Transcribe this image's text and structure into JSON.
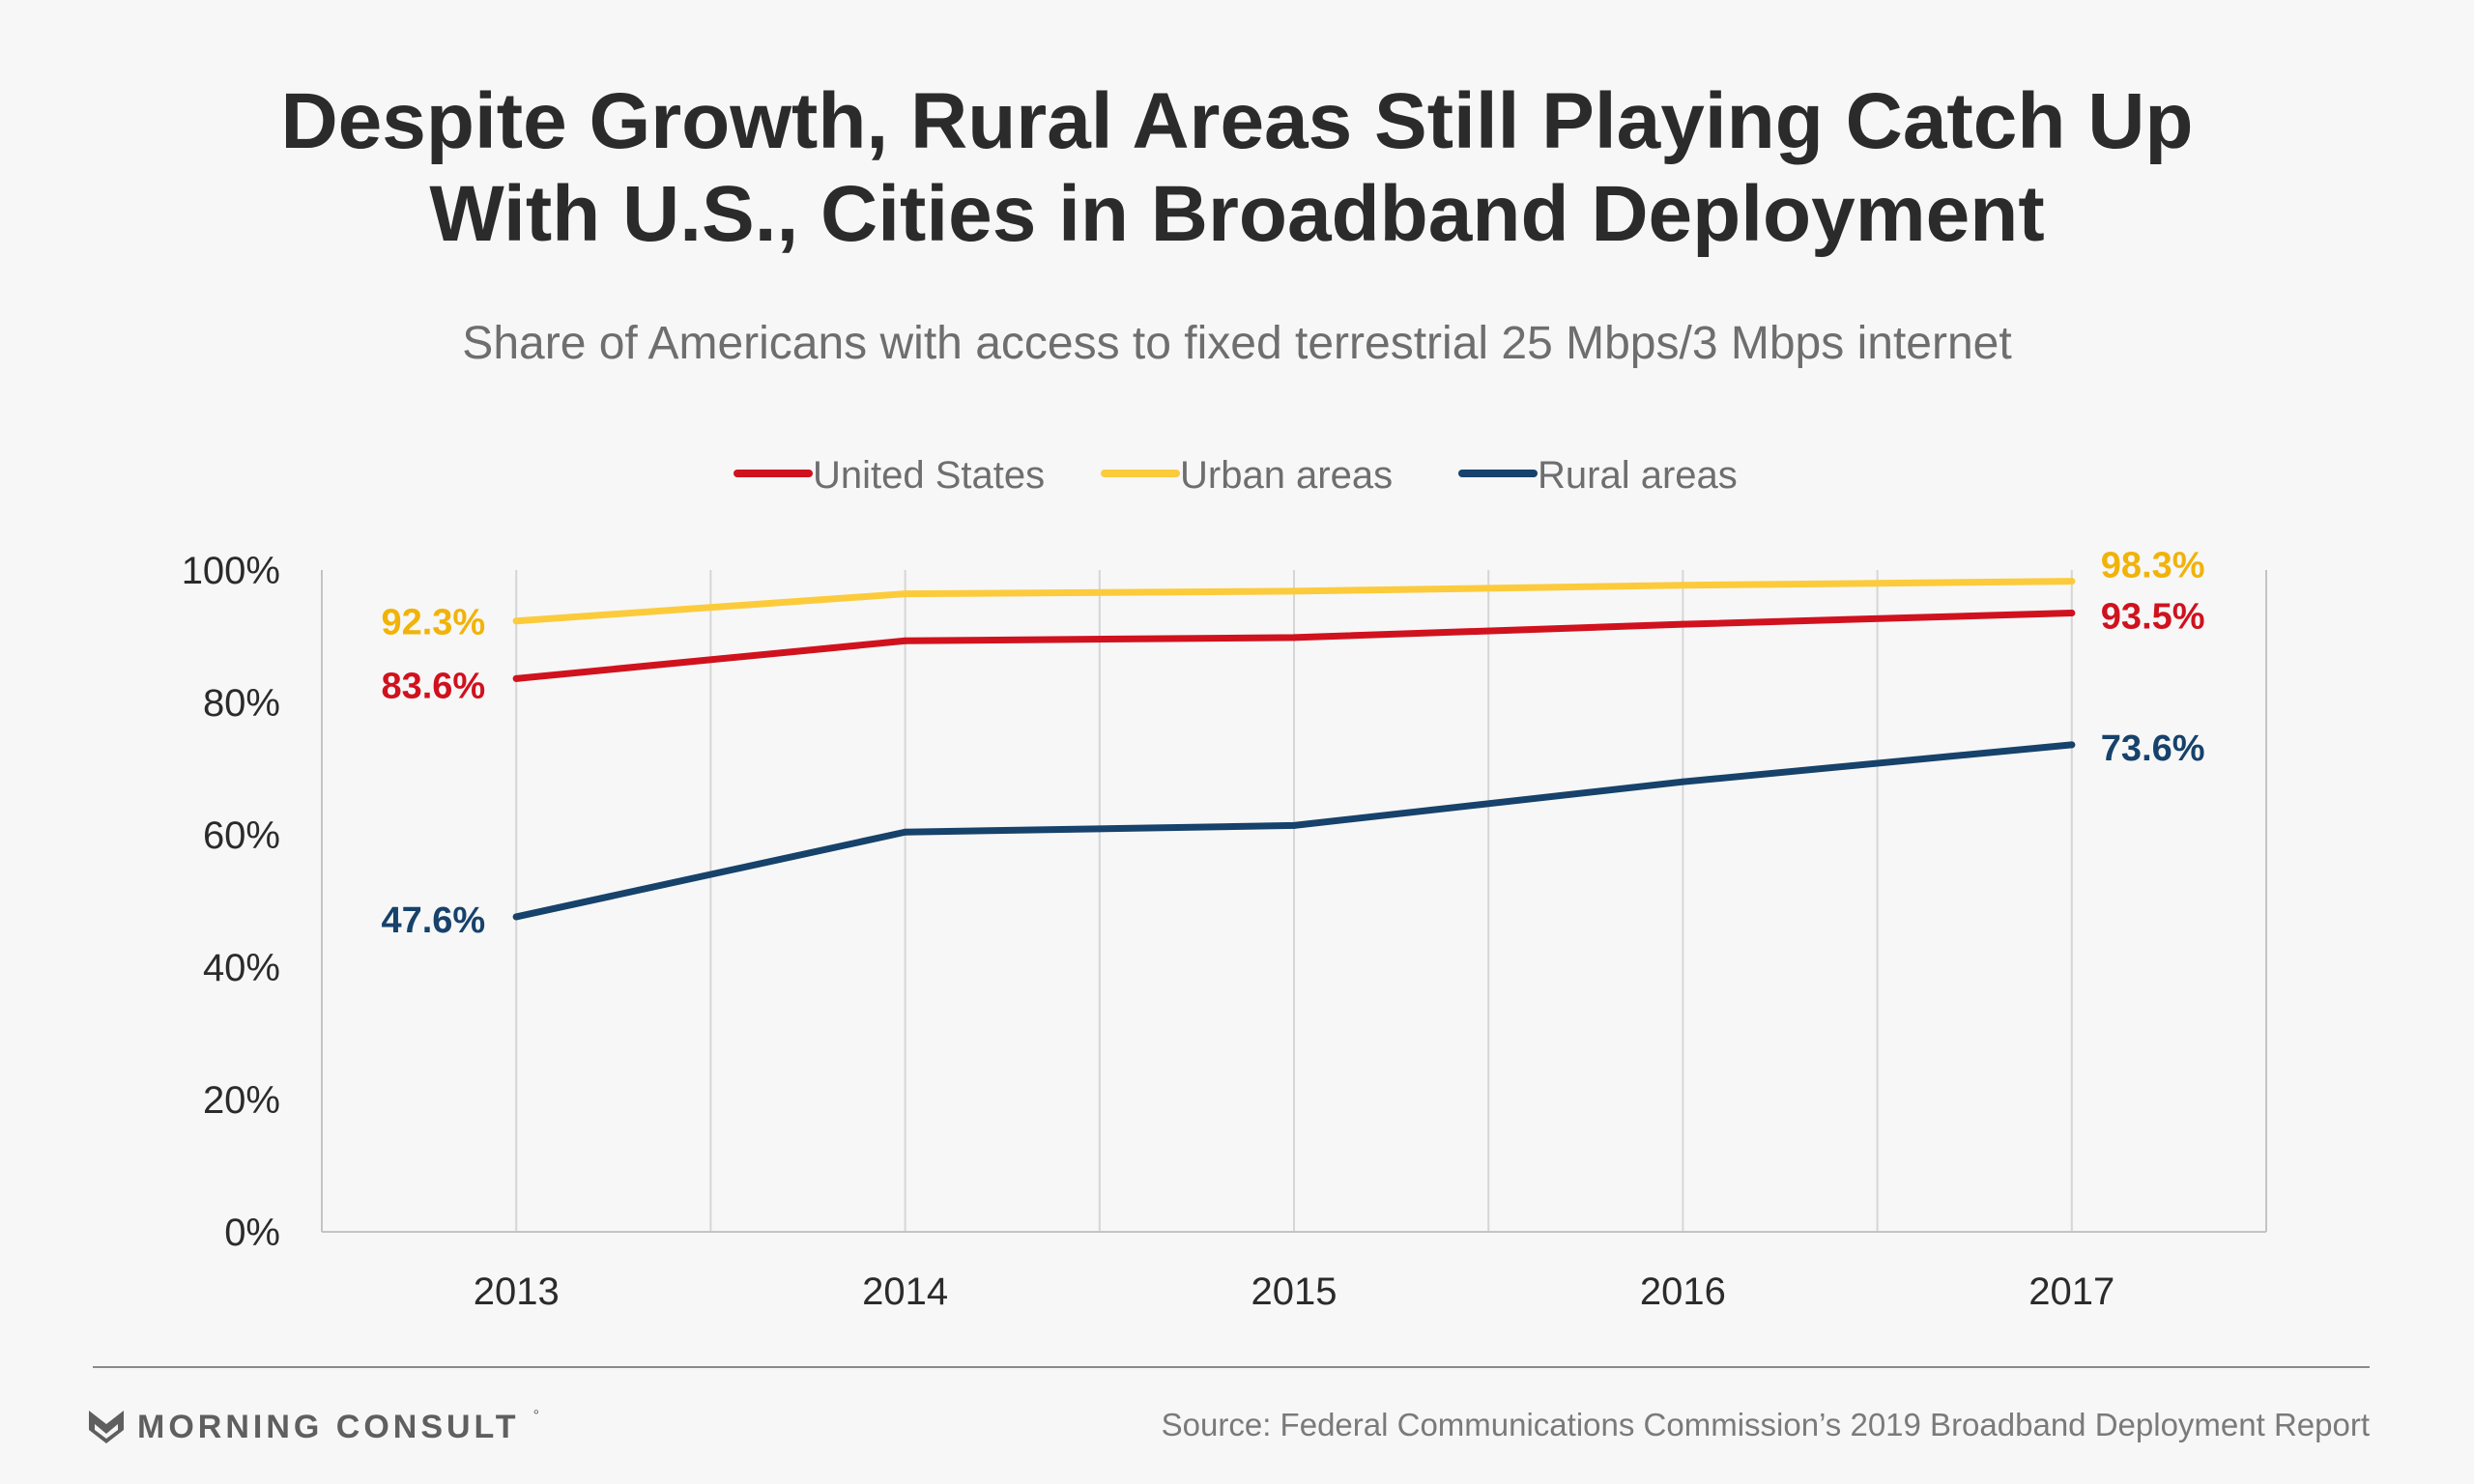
{
  "title": {
    "line1": "Despite Growth, Rural Areas Still Playing Catch Up",
    "line2": "With U.S., Cities in Broadband Deployment"
  },
  "subtitle": "Share of Americans with access to fixed terrestrial 25 Mbps/3 Mbps internet",
  "footer": {
    "brand": "MORNING CONSULT",
    "source": "Source: Federal Communications Commission’s 2019 Broadband Deployment Report"
  },
  "chart_data": {
    "type": "line",
    "x": [
      "2013",
      "2014",
      "2015",
      "2016",
      "2017"
    ],
    "ylim": [
      0,
      100
    ],
    "y_ticks": [
      "0%",
      "20%",
      "40%",
      "60%",
      "80%",
      "100%"
    ],
    "grid": "vertical",
    "legend_position": "top-center",
    "series": [
      {
        "name": "United States",
        "color": "#d0121e",
        "values": [
          83.6,
          89.3,
          89.8,
          91.8,
          93.5
        ],
        "start_label": "83.6%",
        "end_label": "93.5%"
      },
      {
        "name": "Urban areas",
        "color": "#fccb3c",
        "values": [
          92.3,
          96.4,
          96.8,
          97.7,
          98.3
        ],
        "start_label": "92.3%",
        "end_label": "98.3%"
      },
      {
        "name": "Rural areas",
        "color": "#16426b",
        "values": [
          47.6,
          60.4,
          61.4,
          68.0,
          73.6
        ],
        "start_label": "47.6%",
        "end_label": "73.6%"
      }
    ],
    "label_colors": {
      "United States": "#d0121e",
      "Urban areas": "#f1b30a",
      "Rural areas": "#16426b"
    }
  }
}
